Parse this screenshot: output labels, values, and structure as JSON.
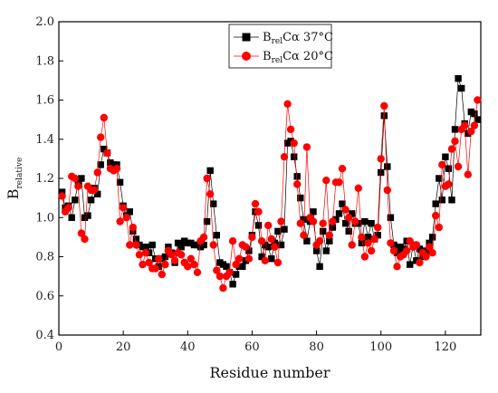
{
  "chart_data": {
    "type": "line",
    "xlabel": "Residue number",
    "ylabel_main": "B",
    "ylabel_sub": "relative",
    "xlim": [
      0,
      131
    ],
    "ylim": [
      0.4,
      2.0
    ],
    "xticks": [
      "0",
      "20",
      "40",
      "60",
      "80",
      "100",
      "120"
    ],
    "xtick_values": [
      0,
      20,
      40,
      60,
      80,
      100,
      120
    ],
    "yticks": [
      "0.4",
      "0.6",
      "0.8",
      "1.0",
      "1.2",
      "1.4",
      "1.6",
      "1.8",
      "2.0"
    ],
    "ytick_values": [
      0.4,
      0.6,
      0.8,
      1.0,
      1.2,
      1.4,
      1.6,
      1.8,
      2.0
    ],
    "grid": false,
    "legend_position": "top-center",
    "series": [
      {
        "name_main": "B",
        "name_sub": "rel",
        "name_suffix": "Cα 37°C",
        "marker": "square",
        "color": "#000000",
        "x": [
          1,
          2,
          3,
          4,
          5,
          6,
          7,
          8,
          9,
          10,
          11,
          12,
          13,
          14,
          15,
          16,
          17,
          18,
          19,
          20,
          21,
          22,
          23,
          24,
          25,
          26,
          27,
          28,
          29,
          30,
          31,
          32,
          33,
          34,
          35,
          36,
          37,
          38,
          39,
          40,
          41,
          42,
          43,
          44,
          45,
          46,
          47,
          48,
          49,
          50,
          51,
          52,
          53,
          54,
          55,
          56,
          57,
          58,
          59,
          60,
          61,
          62,
          63,
          64,
          65,
          66,
          67,
          68,
          69,
          70,
          71,
          72,
          73,
          74,
          75,
          76,
          77,
          78,
          79,
          80,
          81,
          82,
          83,
          84,
          85,
          86,
          87,
          88,
          89,
          90,
          91,
          92,
          93,
          94,
          95,
          96,
          97,
          98,
          99,
          100,
          101,
          102,
          103,
          104,
          105,
          106,
          107,
          108,
          109,
          110,
          111,
          112,
          113,
          114,
          115,
          116,
          117,
          118,
          119,
          120,
          121,
          122,
          123,
          124,
          125,
          126,
          127,
          128,
          129,
          130
        ],
        "y": [
          1.13,
          1.05,
          1.06,
          1.0,
          1.09,
          1.18,
          1.2,
          1.0,
          1.01,
          1.09,
          1.15,
          1.12,
          1.27,
          1.35,
          1.33,
          1.28,
          1.27,
          1.27,
          1.18,
          1.06,
          1.01,
          1.03,
          0.93,
          0.89,
          0.86,
          0.85,
          0.85,
          0.82,
          0.86,
          0.79,
          0.75,
          0.79,
          0.8,
          0.85,
          0.82,
          0.77,
          0.87,
          0.85,
          0.88,
          0.87,
          0.87,
          0.86,
          0.86,
          0.85,
          0.86,
          0.98,
          1.24,
          1.07,
          0.91,
          0.77,
          0.76,
          0.75,
          0.72,
          0.66,
          0.71,
          0.75,
          0.75,
          0.78,
          0.83,
          0.91,
          1.03,
          0.96,
          0.8,
          0.86,
          0.85,
          0.79,
          0.87,
          0.93,
          0.86,
          0.94,
          1.38,
          1.39,
          1.31,
          1.21,
          1.1,
          0.99,
          0.88,
          0.98,
          1.03,
          0.83,
          0.75,
          0.93,
          0.83,
          0.88,
          0.95,
          0.99,
          1.02,
          1.07,
          0.97,
          0.93,
          1.02,
          0.97,
          0.97,
          0.87,
          0.98,
          0.9,
          0.97,
          0.89,
          0.91,
          1.23,
          1.52,
          1.26,
          1.0,
          0.86,
          0.82,
          0.85,
          0.84,
          0.88,
          0.76,
          0.86,
          0.78,
          0.84,
          0.8,
          0.83,
          0.87,
          0.9,
          1.07,
          1.2,
          1.09,
          1.31,
          1.25,
          1.09,
          1.45,
          1.71,
          1.66,
          1.48,
          1.43,
          1.54,
          1.53,
          1.5
        ]
      },
      {
        "name_main": "B",
        "name_sub": "rel",
        "name_suffix": "Cα 20°C",
        "marker": "circle",
        "color": "#ff0000",
        "x": [
          1,
          2,
          3,
          4,
          5,
          6,
          7,
          8,
          9,
          10,
          11,
          12,
          13,
          14,
          15,
          16,
          17,
          18,
          19,
          20,
          21,
          22,
          23,
          24,
          25,
          26,
          27,
          28,
          29,
          30,
          31,
          32,
          33,
          34,
          35,
          36,
          37,
          38,
          39,
          40,
          41,
          42,
          43,
          44,
          45,
          46,
          47,
          48,
          49,
          50,
          51,
          52,
          53,
          54,
          55,
          56,
          57,
          58,
          59,
          60,
          61,
          62,
          63,
          64,
          65,
          66,
          67,
          68,
          69,
          70,
          71,
          72,
          73,
          74,
          75,
          76,
          77,
          78,
          79,
          80,
          81,
          82,
          83,
          84,
          85,
          86,
          87,
          88,
          89,
          90,
          91,
          92,
          93,
          94,
          95,
          96,
          97,
          98,
          99,
          100,
          101,
          102,
          103,
          104,
          105,
          106,
          107,
          108,
          109,
          110,
          111,
          112,
          113,
          114,
          115,
          116,
          117,
          118,
          119,
          120,
          121,
          122,
          123,
          124,
          125,
          126,
          127,
          128,
          129,
          130
        ],
        "y": [
          1.11,
          1.03,
          1.05,
          1.21,
          1.2,
          1.16,
          0.92,
          0.89,
          1.16,
          1.14,
          1.14,
          1.23,
          1.41,
          1.51,
          1.33,
          1.25,
          1.24,
          1.25,
          0.98,
          1.05,
          1.0,
          0.86,
          0.95,
          0.86,
          0.81,
          0.76,
          0.82,
          0.77,
          0.74,
          0.74,
          0.79,
          0.71,
          0.76,
          0.83,
          0.81,
          0.78,
          0.82,
          0.81,
          0.77,
          0.75,
          0.79,
          0.76,
          0.72,
          0.88,
          0.9,
          1.2,
          1.12,
          0.86,
          0.73,
          0.7,
          0.64,
          0.7,
          0.72,
          0.88,
          0.76,
          0.79,
          0.86,
          0.85,
          0.79,
          0.9,
          1.07,
          1.03,
          0.88,
          0.78,
          0.96,
          0.89,
          0.85,
          0.77,
          0.98,
          1.31,
          1.58,
          1.45,
          1.38,
          1.17,
          0.97,
          0.91,
          1.36,
          1.0,
          0.98,
          0.86,
          0.88,
          0.97,
          1.19,
          0.91,
          0.98,
          1.18,
          1.18,
          1.25,
          1.04,
          1.0,
          0.86,
          0.98,
          1.15,
          0.9,
          0.8,
          0.87,
          0.83,
          0.89,
          0.95,
          1.3,
          1.57,
          1.14,
          0.87,
          0.83,
          0.75,
          0.8,
          0.81,
          0.83,
          0.88,
          0.85,
          0.86,
          0.77,
          0.82,
          0.8,
          0.85,
          0.82,
          1.01,
          0.95,
          1.27,
          1.16,
          1.17,
          1.35,
          1.39,
          1.26,
          1.45,
          1.47,
          1.22,
          1.44,
          1.47,
          1.6
        ]
      }
    ]
  }
}
